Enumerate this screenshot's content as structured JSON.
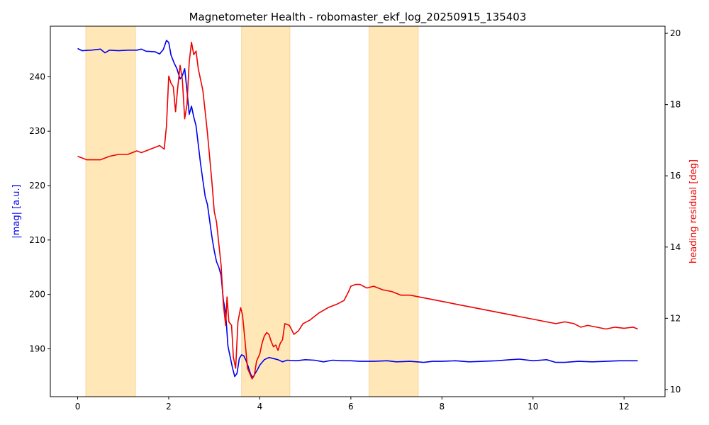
{
  "chart_data": {
    "type": "line",
    "title": "Magnetometer Health - robomaster_ekf_log_20250915_135403",
    "xlabel": "",
    "ylabel_left": "|mag| [a.u.]",
    "ylabel_right": "heading residual [deg]",
    "xlim": [
      -0.6,
      12.9
    ],
    "ylim_left": [
      181.2,
      249.3
    ],
    "ylim_right": [
      9.8,
      20.2
    ],
    "x_ticks": [
      0,
      2,
      4,
      6,
      8,
      10,
      12
    ],
    "y_ticks_left": [
      190,
      200,
      210,
      220,
      230,
      240
    ],
    "y_ticks_right": [
      10,
      12,
      14,
      16,
      18,
      20
    ],
    "grid": false,
    "highlight_spans": [
      {
        "x0": 0.18,
        "x1": 1.27
      },
      {
        "x0": 3.6,
        "x1": 4.66
      },
      {
        "x0": 6.4,
        "x1": 7.48
      }
    ],
    "colors": {
      "mag": "#0000ee",
      "residual": "#ee0000",
      "span": "#ffe7b8",
      "span_edge": "#f5d49a"
    },
    "series": [
      {
        "axis": "left",
        "points": [
          [
            0.0,
            245.2
          ],
          [
            0.1,
            244.8
          ],
          [
            0.3,
            244.9
          ],
          [
            0.5,
            245.1
          ],
          [
            0.6,
            244.4
          ],
          [
            0.7,
            244.9
          ],
          [
            0.9,
            244.8
          ],
          [
            1.1,
            244.9
          ],
          [
            1.3,
            244.9
          ],
          [
            1.4,
            245.1
          ],
          [
            1.5,
            244.7
          ],
          [
            1.7,
            244.6
          ],
          [
            1.8,
            244.2
          ],
          [
            1.88,
            245.0
          ],
          [
            1.95,
            246.7
          ],
          [
            2.0,
            246.3
          ],
          [
            2.05,
            244.0
          ],
          [
            2.12,
            242.5
          ],
          [
            2.18,
            241.5
          ],
          [
            2.25,
            239.6
          ],
          [
            2.3,
            240.2
          ],
          [
            2.35,
            241.5
          ],
          [
            2.4,
            237.5
          ],
          [
            2.45,
            233.1
          ],
          [
            2.5,
            234.6
          ],
          [
            2.55,
            232.6
          ],
          [
            2.6,
            231.0
          ],
          [
            2.65,
            227.5
          ],
          [
            2.7,
            224.0
          ],
          [
            2.75,
            221.0
          ],
          [
            2.8,
            218.0
          ],
          [
            2.85,
            216.5
          ],
          [
            2.9,
            213.5
          ],
          [
            2.95,
            210.5
          ],
          [
            3.0,
            208.0
          ],
          [
            3.05,
            206.0
          ],
          [
            3.1,
            205.0
          ],
          [
            3.15,
            203.5
          ],
          [
            3.2,
            199.0
          ],
          [
            3.25,
            196.5
          ],
          [
            3.3,
            190.5
          ],
          [
            3.35,
            188.5
          ],
          [
            3.4,
            186.5
          ],
          [
            3.45,
            184.9
          ],
          [
            3.5,
            185.5
          ],
          [
            3.55,
            188.2
          ],
          [
            3.6,
            188.9
          ],
          [
            3.65,
            188.7
          ],
          [
            3.7,
            187.8
          ],
          [
            3.75,
            186.6
          ],
          [
            3.8,
            185.3
          ],
          [
            3.85,
            184.7
          ],
          [
            3.9,
            185.5
          ],
          [
            3.95,
            186.2
          ],
          [
            4.0,
            187.0
          ],
          [
            4.1,
            188.0
          ],
          [
            4.2,
            188.4
          ],
          [
            4.3,
            188.2
          ],
          [
            4.4,
            188.0
          ],
          [
            4.5,
            187.6
          ],
          [
            4.6,
            187.9
          ],
          [
            4.8,
            187.8
          ],
          [
            5.0,
            188.0
          ],
          [
            5.2,
            187.9
          ],
          [
            5.4,
            187.6
          ],
          [
            5.6,
            187.9
          ],
          [
            5.8,
            187.8
          ],
          [
            6.0,
            187.8
          ],
          [
            6.2,
            187.7
          ],
          [
            6.5,
            187.7
          ],
          [
            6.8,
            187.8
          ],
          [
            7.0,
            187.6
          ],
          [
            7.3,
            187.7
          ],
          [
            7.6,
            187.5
          ],
          [
            7.8,
            187.7
          ],
          [
            8.0,
            187.7
          ],
          [
            8.3,
            187.8
          ],
          [
            8.6,
            187.6
          ],
          [
            8.9,
            187.7
          ],
          [
            9.2,
            187.8
          ],
          [
            9.5,
            188.0
          ],
          [
            9.7,
            188.1
          ],
          [
            10.0,
            187.8
          ],
          [
            10.3,
            188.0
          ],
          [
            10.5,
            187.5
          ],
          [
            10.7,
            187.5
          ],
          [
            11.0,
            187.7
          ],
          [
            11.3,
            187.6
          ],
          [
            11.6,
            187.7
          ],
          [
            11.9,
            187.8
          ],
          [
            12.1,
            187.8
          ],
          [
            12.3,
            187.8
          ]
        ]
      },
      {
        "axis": "right",
        "points": [
          [
            0.0,
            16.55
          ],
          [
            0.1,
            16.5
          ],
          [
            0.2,
            16.45
          ],
          [
            0.35,
            16.45
          ],
          [
            0.5,
            16.45
          ],
          [
            0.7,
            16.55
          ],
          [
            0.9,
            16.6
          ],
          [
            1.1,
            16.6
          ],
          [
            1.2,
            16.65
          ],
          [
            1.3,
            16.7
          ],
          [
            1.4,
            16.65
          ],
          [
            1.5,
            16.7
          ],
          [
            1.6,
            16.75
          ],
          [
            1.7,
            16.8
          ],
          [
            1.8,
            16.85
          ],
          [
            1.9,
            16.75
          ],
          [
            1.95,
            17.4
          ],
          [
            2.0,
            18.8
          ],
          [
            2.05,
            18.6
          ],
          [
            2.1,
            18.5
          ],
          [
            2.15,
            17.8
          ],
          [
            2.2,
            18.5
          ],
          [
            2.25,
            19.1
          ],
          [
            2.3,
            18.7
          ],
          [
            2.35,
            17.6
          ],
          [
            2.4,
            18.0
          ],
          [
            2.45,
            19.2
          ],
          [
            2.5,
            19.75
          ],
          [
            2.55,
            19.4
          ],
          [
            2.6,
            19.5
          ],
          [
            2.65,
            19.0
          ],
          [
            2.7,
            18.7
          ],
          [
            2.75,
            18.4
          ],
          [
            2.8,
            17.8
          ],
          [
            2.85,
            17.2
          ],
          [
            2.9,
            16.5
          ],
          [
            2.95,
            15.8
          ],
          [
            3.0,
            15.0
          ],
          [
            3.05,
            14.7
          ],
          [
            3.1,
            14.1
          ],
          [
            3.15,
            13.5
          ],
          [
            3.2,
            12.4
          ],
          [
            3.25,
            11.8
          ],
          [
            3.28,
            12.6
          ],
          [
            3.32,
            11.9
          ],
          [
            3.38,
            11.8
          ],
          [
            3.42,
            10.9
          ],
          [
            3.47,
            10.6
          ],
          [
            3.52,
            11.9
          ],
          [
            3.58,
            12.3
          ],
          [
            3.62,
            12.1
          ],
          [
            3.68,
            11.3
          ],
          [
            3.73,
            10.6
          ],
          [
            3.78,
            10.45
          ],
          [
            3.83,
            10.3
          ],
          [
            3.88,
            10.4
          ],
          [
            3.93,
            10.8
          ],
          [
            4.0,
            11.0
          ],
          [
            4.05,
            11.3
          ],
          [
            4.1,
            11.5
          ],
          [
            4.15,
            11.6
          ],
          [
            4.2,
            11.55
          ],
          [
            4.25,
            11.35
          ],
          [
            4.3,
            11.2
          ],
          [
            4.35,
            11.25
          ],
          [
            4.4,
            11.1
          ],
          [
            4.45,
            11.3
          ],
          [
            4.5,
            11.4
          ],
          [
            4.55,
            11.85
          ],
          [
            4.65,
            11.8
          ],
          [
            4.75,
            11.55
          ],
          [
            4.85,
            11.65
          ],
          [
            4.95,
            11.85
          ],
          [
            5.1,
            11.95
          ],
          [
            5.3,
            12.15
          ],
          [
            5.5,
            12.3
          ],
          [
            5.7,
            12.4
          ],
          [
            5.85,
            12.5
          ],
          [
            5.95,
            12.75
          ],
          [
            6.0,
            12.9
          ],
          [
            6.1,
            12.95
          ],
          [
            6.2,
            12.95
          ],
          [
            6.35,
            12.85
          ],
          [
            6.5,
            12.9
          ],
          [
            6.7,
            12.8
          ],
          [
            6.9,
            12.75
          ],
          [
            7.1,
            12.65
          ],
          [
            7.3,
            12.65
          ],
          [
            7.5,
            12.6
          ],
          [
            7.7,
            12.55
          ],
          [
            7.9,
            12.5
          ],
          [
            8.1,
            12.45
          ],
          [
            8.3,
            12.4
          ],
          [
            8.5,
            12.35
          ],
          [
            8.7,
            12.3
          ],
          [
            8.9,
            12.25
          ],
          [
            9.1,
            12.2
          ],
          [
            9.3,
            12.15
          ],
          [
            9.5,
            12.1
          ],
          [
            9.7,
            12.05
          ],
          [
            9.9,
            12.0
          ],
          [
            10.1,
            11.95
          ],
          [
            10.3,
            11.9
          ],
          [
            10.5,
            11.85
          ],
          [
            10.7,
            11.9
          ],
          [
            10.9,
            11.85
          ],
          [
            11.05,
            11.75
          ],
          [
            11.2,
            11.8
          ],
          [
            11.4,
            11.75
          ],
          [
            11.6,
            11.7
          ],
          [
            11.8,
            11.75
          ],
          [
            12.0,
            11.72
          ],
          [
            12.2,
            11.75
          ],
          [
            12.3,
            11.7
          ]
        ]
      }
    ]
  }
}
